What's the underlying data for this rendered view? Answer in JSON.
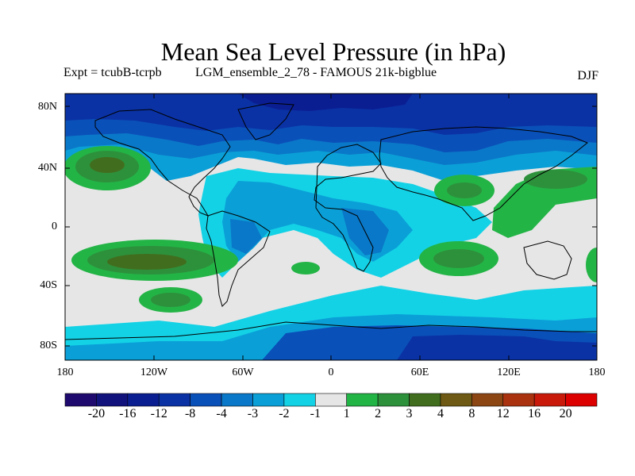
{
  "title": "Mean Sea Level Pressure (in hPa)",
  "experiment_label": "Expt = tcubB-tcrpb",
  "ensemble_label": "LGM_ensemble_2_78 - FAMOUS 21k-bigblue",
  "season": "DJF",
  "map": {
    "projection": "equirectangular",
    "lon_range": [
      -180,
      180
    ],
    "lat_range": [
      -90,
      90
    ],
    "lat_ticks": [
      "80N",
      "40N",
      "0",
      "40S",
      "80S"
    ],
    "lon_ticks": [
      "180",
      "120W",
      "60W",
      "0",
      "60E",
      "120E",
      "180"
    ],
    "coastlines": "black outline"
  },
  "colorbar": {
    "labels": [
      "-20",
      "-16",
      "-12",
      "-8",
      "-4",
      "-3",
      "-2",
      "-1",
      "1",
      "2",
      "3",
      "4",
      "8",
      "12",
      "16",
      "20"
    ],
    "colors": [
      "#1e0a6e",
      "#12127d",
      "#0a1e91",
      "#0a32a5",
      "#0a50b9",
      "#0a78c8",
      "#0aa0d7",
      "#14d2e6",
      "#e6e6e6",
      "#23b446",
      "#2d913c",
      "#416e1e",
      "#6e5a14",
      "#8c4614",
      "#aa320f",
      "#c8190a",
      "#dc0000"
    ]
  }
}
